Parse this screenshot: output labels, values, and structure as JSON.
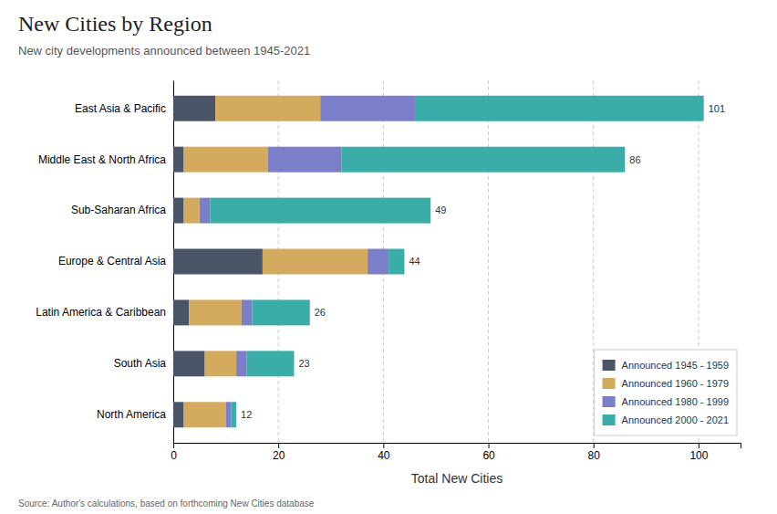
{
  "chart_data": {
    "type": "bar",
    "orientation": "horizontal",
    "stacked": true,
    "title": "New Cities by Region",
    "subtitle": "New city developments announced between 1945-2021",
    "xlabel": "Total New Cities",
    "source": "Source: Author's calculations, based on forthcoming New Cities database",
    "categories": [
      "East Asia & Pacific",
      "Middle East & North Africa",
      "Sub-Saharan Africa",
      "Europe & Central Asia",
      "Latin America & Caribbean",
      "South Asia",
      "North America"
    ],
    "series": [
      {
        "name": "Announced 1945 - 1959",
        "color": "#4a5568",
        "values": [
          8,
          2,
          2,
          17,
          3,
          6,
          2
        ]
      },
      {
        "name": "Announced 1960 - 1979",
        "color": "#d4aa5f",
        "values": [
          20,
          16,
          3,
          20,
          10,
          6,
          8
        ]
      },
      {
        "name": "Announced 1980 - 1999",
        "color": "#7b7ec8",
        "values": [
          18,
          14,
          2,
          4,
          2,
          2,
          1
        ]
      },
      {
        "name": "Announced 2000 - 2021",
        "color": "#3aada8",
        "values": [
          55,
          54,
          42,
          3,
          11,
          9,
          1
        ]
      }
    ],
    "totals": [
      101,
      86,
      49,
      44,
      26,
      23,
      12
    ],
    "xlim": [
      0,
      108
    ],
    "xticks": [
      0,
      20,
      40,
      60,
      80,
      100
    ],
    "grid": true,
    "legend": "lower right"
  }
}
